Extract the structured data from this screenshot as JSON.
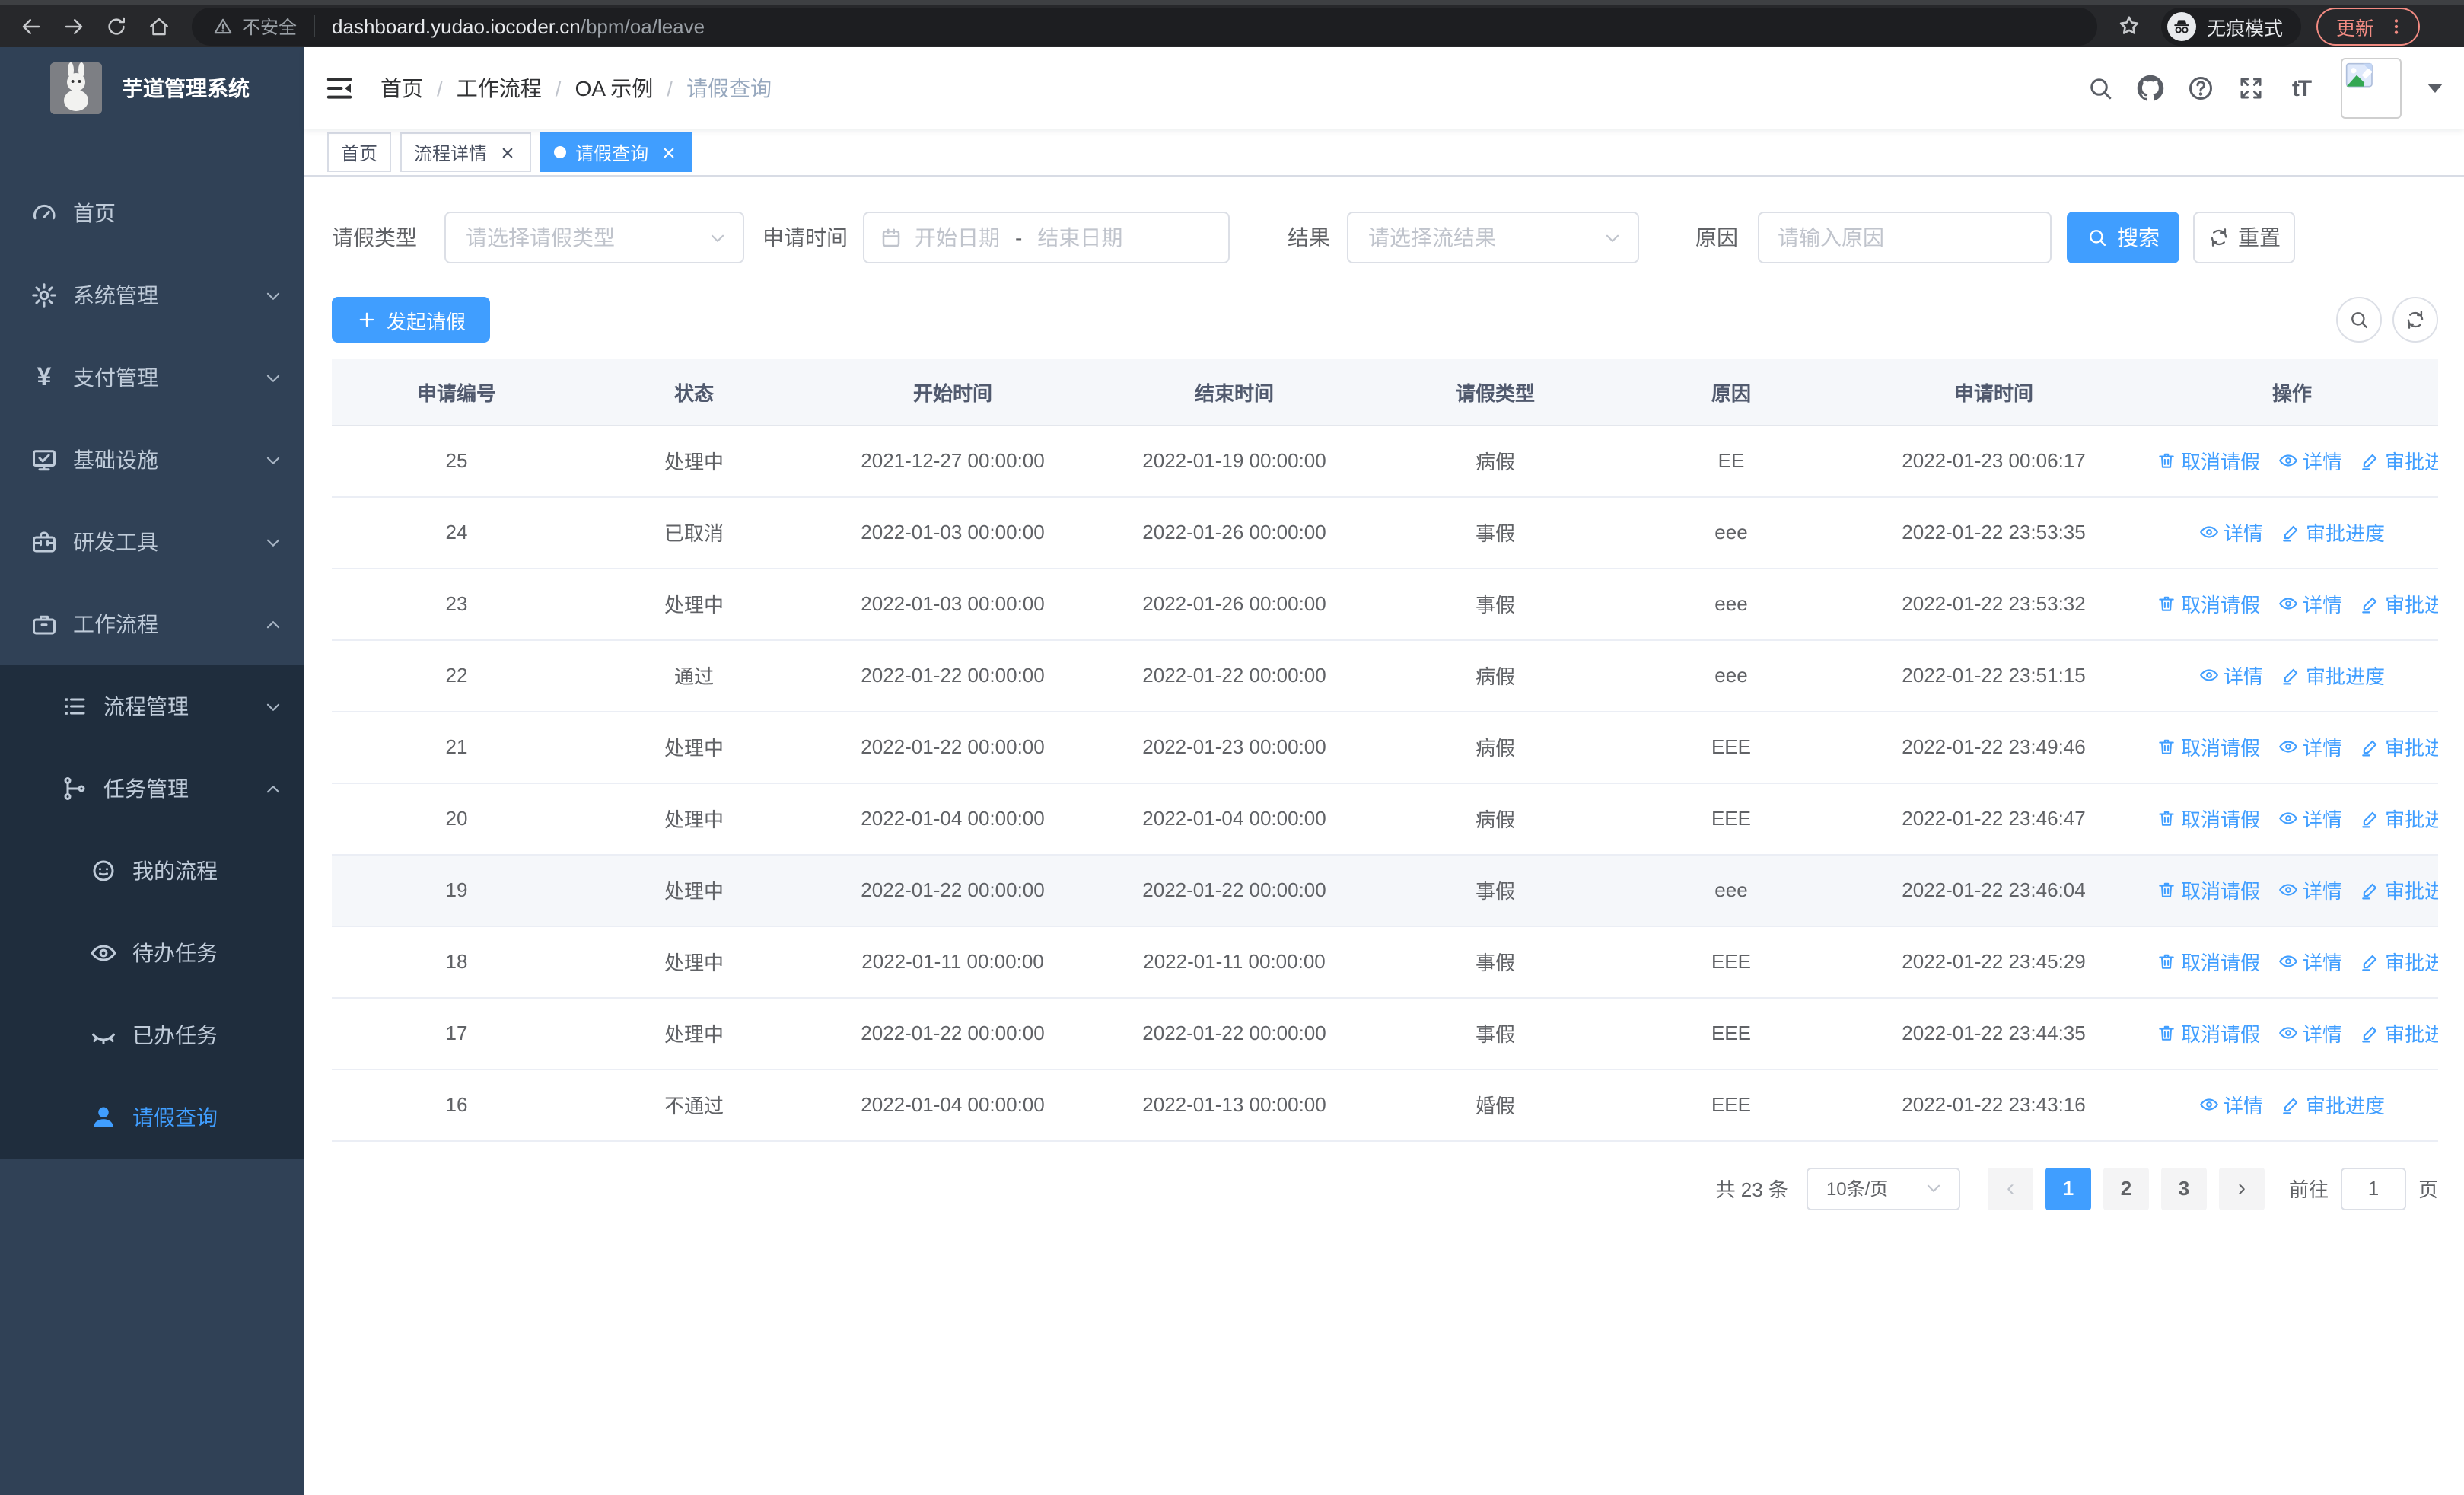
{
  "browser": {
    "not_secure": "不安全",
    "url_host": "dashboard.yudao.iocoder.cn",
    "url_path": "/bpm/oa/leave",
    "incognito_label": "无痕模式",
    "update_label": "更新"
  },
  "sidebar": {
    "app_title": "芋道管理系统",
    "items": [
      {
        "label": "首页",
        "icon": "gauge-icon",
        "level": 1
      },
      {
        "label": "系统管理",
        "icon": "gear-icon",
        "level": 1,
        "chevron": "down"
      },
      {
        "label": "支付管理",
        "icon": "yen-icon",
        "level": 1,
        "chevron": "down"
      },
      {
        "label": "基础设施",
        "icon": "monitor-icon",
        "level": 1,
        "chevron": "down"
      },
      {
        "label": "研发工具",
        "icon": "toolbox-icon",
        "level": 1,
        "chevron": "down"
      },
      {
        "label": "工作流程",
        "icon": "briefcase-icon",
        "level": 1,
        "chevron": "up"
      },
      {
        "label": "流程管理",
        "icon": "list-icon",
        "level": 2,
        "chevron": "down",
        "sub": true
      },
      {
        "label": "任务管理",
        "icon": "branch-icon",
        "level": 2,
        "chevron": "up",
        "sub": true
      },
      {
        "label": "我的流程",
        "icon": "robot-icon",
        "level": 3,
        "sub": true
      },
      {
        "label": "待办任务",
        "icon": "eye-open-icon",
        "level": 3,
        "sub": true
      },
      {
        "label": "已办任务",
        "icon": "eye-closed-icon",
        "level": 3,
        "sub": true
      },
      {
        "label": "请假查询",
        "icon": "person-icon",
        "level": 3,
        "sub": true,
        "active": true
      }
    ]
  },
  "breadcrumb": {
    "separator": "/",
    "items": [
      "首页",
      "工作流程",
      "OA 示例",
      "请假查询"
    ]
  },
  "tabs": [
    {
      "label": "首页",
      "closable": false,
      "active": false
    },
    {
      "label": "流程详情",
      "closable": true,
      "active": false
    },
    {
      "label": "请假查询",
      "closable": true,
      "active": true
    }
  ],
  "filters": {
    "leave_type_label": "请假类型",
    "leave_type_placeholder": "请选择请假类型",
    "apply_time_label": "申请时间",
    "start_date_placeholder": "开始日期",
    "range_separator": "-",
    "end_date_placeholder": "结束日期",
    "result_label": "结果",
    "result_placeholder": "请选择流结果",
    "reason_label": "原因",
    "reason_placeholder": "请输入原因",
    "search_label": "搜索",
    "reset_label": "重置"
  },
  "toolbar": {
    "create_label": "发起请假"
  },
  "table": {
    "columns": [
      "申请编号",
      "状态",
      "开始时间",
      "结束时间",
      "请假类型",
      "原因",
      "申请时间",
      "操作"
    ],
    "action_labels": {
      "cancel": "取消请假",
      "detail": "详情",
      "progress": "审批进度"
    },
    "rows": [
      {
        "id": "25",
        "status": "处理中",
        "start": "2021-12-27 00:00:00",
        "end": "2022-01-19 00:00:00",
        "type": "病假",
        "reason": "EE",
        "apply": "2022-01-23 00:06:17",
        "cancel": true
      },
      {
        "id": "24",
        "status": "已取消",
        "start": "2022-01-03 00:00:00",
        "end": "2022-01-26 00:00:00",
        "type": "事假",
        "reason": "eee",
        "apply": "2022-01-22 23:53:35",
        "cancel": false
      },
      {
        "id": "23",
        "status": "处理中",
        "start": "2022-01-03 00:00:00",
        "end": "2022-01-26 00:00:00",
        "type": "事假",
        "reason": "eee",
        "apply": "2022-01-22 23:53:32",
        "cancel": true
      },
      {
        "id": "22",
        "status": "通过",
        "start": "2022-01-22 00:00:00",
        "end": "2022-01-22 00:00:00",
        "type": "病假",
        "reason": "eee",
        "apply": "2022-01-22 23:51:15",
        "cancel": false
      },
      {
        "id": "21",
        "status": "处理中",
        "start": "2022-01-22 00:00:00",
        "end": "2022-01-23 00:00:00",
        "type": "病假",
        "reason": "EEE",
        "apply": "2022-01-22 23:49:46",
        "cancel": true
      },
      {
        "id": "20",
        "status": "处理中",
        "start": "2022-01-04 00:00:00",
        "end": "2022-01-04 00:00:00",
        "type": "病假",
        "reason": "EEE",
        "apply": "2022-01-22 23:46:47",
        "cancel": true
      },
      {
        "id": "19",
        "status": "处理中",
        "start": "2022-01-22 00:00:00",
        "end": "2022-01-22 00:00:00",
        "type": "事假",
        "reason": "eee",
        "apply": "2022-01-22 23:46:04",
        "cancel": true,
        "highlight": true
      },
      {
        "id": "18",
        "status": "处理中",
        "start": "2022-01-11 00:00:00",
        "end": "2022-01-11 00:00:00",
        "type": "事假",
        "reason": "EEE",
        "apply": "2022-01-22 23:45:29",
        "cancel": true
      },
      {
        "id": "17",
        "status": "处理中",
        "start": "2022-01-22 00:00:00",
        "end": "2022-01-22 00:00:00",
        "type": "事假",
        "reason": "EEE",
        "apply": "2022-01-22 23:44:35",
        "cancel": true
      },
      {
        "id": "16",
        "status": "不通过",
        "start": "2022-01-04 00:00:00",
        "end": "2022-01-13 00:00:00",
        "type": "婚假",
        "reason": "EEE",
        "apply": "2022-01-22 23:43:16",
        "cancel": false
      }
    ]
  },
  "pagination": {
    "total": "共 23 条",
    "page_size": "10条/页",
    "prev": "‹",
    "next": "›",
    "pages": [
      "1",
      "2",
      "3"
    ],
    "active_page": "1",
    "goto_label": "前往",
    "goto_value": "1",
    "page_unit": "页"
  },
  "colors": {
    "primary": "#409eff",
    "sidebar_bg": "#304156",
    "submenu_bg": "#1f2d3d",
    "sidebar_text": "#bfcbd9",
    "table_header_bg": "#f5f7fa",
    "update_accent": "#f28b82"
  }
}
